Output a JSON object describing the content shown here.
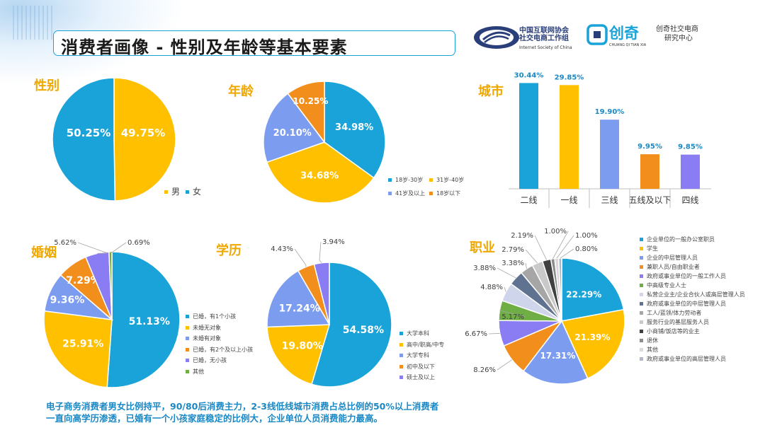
{
  "header": {
    "title": "消费者画像 - 性别及年龄等基本要素",
    "logo1": {
      "line1": "中国互联网协会",
      "line2": "社交电商工作组",
      "en": "Internet Society of China"
    },
    "logo2": {
      "brand": "创奇",
      "brand_en": "CHUANG QI TIAN XIA",
      "line1": "创奇社交电商",
      "line2": "研究中心"
    }
  },
  "colors": {
    "blue": "#1aa3d9",
    "gold": "#ffc000",
    "periwinkle": "#7c9cf0",
    "orange": "#f28e1c",
    "purple": "#8a7cf2",
    "green": "#6fae45",
    "grey1": "#a6a6a6",
    "grey2": "#c9c9c9",
    "dark": "#404040"
  },
  "footer": {
    "line1": "电子商务消费者男女比例持平，90/80后消费主力，2-3线低线城市消费占总比例的50%以上消费者",
    "line2": "一直向高学历渗透，已婚有一个小孩家庭稳定的比例大，企业单位人员消费能力最高。"
  },
  "chart_data": [
    {
      "id": "gender",
      "type": "pie",
      "title": "性别",
      "series": [
        {
          "values": [
            {
              "label": "男",
              "value": 49.75,
              "text": "49.75%",
              "color": "#ffc000"
            },
            {
              "label": "女",
              "value": 50.25,
              "text": "50.25%",
              "color": "#1aa3d9"
            }
          ]
        }
      ]
    },
    {
      "id": "age",
      "type": "pie",
      "title": "年龄",
      "series": [
        {
          "values": [
            {
              "label": "18岁-30岁",
              "value": 34.98,
              "text": "34.98%",
              "color": "#1aa3d9"
            },
            {
              "label": "31岁-40岁",
              "value": 34.68,
              "text": "34.68%",
              "color": "#ffc000"
            },
            {
              "label": "41岁及以上",
              "value": 20.1,
              "text": "20.10%",
              "color": "#7c9cf0"
            },
            {
              "label": "18岁以下",
              "value": 10.25,
              "text": "10.25%",
              "color": "#f28e1c"
            }
          ]
        }
      ]
    },
    {
      "id": "city",
      "type": "bar",
      "title": "城市",
      "categories": [
        "二线",
        "一线",
        "三线",
        "五线及以下",
        "四线"
      ],
      "values": [
        30.44,
        29.85,
        19.9,
        9.95,
        9.85
      ],
      "labels": [
        "30.44%",
        "29.85%",
        "19.90%",
        "9.95%",
        "9.85%"
      ],
      "colors": [
        "#1aa3d9",
        "#ffc000",
        "#7c9cf0",
        "#f28e1c",
        "#8a7cf2"
      ],
      "ylim": [
        0,
        35
      ]
    },
    {
      "id": "marriage",
      "type": "pie",
      "title": "婚姻",
      "series": [
        {
          "values": [
            {
              "label": "已婚，有1个小孩",
              "value": 51.13,
              "text": "51.13%",
              "color": "#1aa3d9"
            },
            {
              "label": "未婚无对象",
              "value": 25.91,
              "text": "25.91%",
              "color": "#ffc000"
            },
            {
              "label": "未婚有对象",
              "value": 9.36,
              "text": "9.36%",
              "color": "#7c9cf0"
            },
            {
              "label": "已婚，有2个及以上小孩",
              "value": 7.29,
              "text": "7.29%",
              "color": "#f28e1c"
            },
            {
              "label": "已婚，无小孩",
              "value": 5.62,
              "text": "5.62%",
              "color": "#8a7cf2"
            },
            {
              "label": "其他",
              "value": 0.69,
              "text": "0.69%",
              "color": "#6fae45"
            }
          ]
        }
      ]
    },
    {
      "id": "education",
      "type": "pie",
      "title": "学历",
      "series": [
        {
          "values": [
            {
              "label": "大学本科",
              "value": 54.58,
              "text": "54.58%",
              "color": "#1aa3d9"
            },
            {
              "label": "高中/职高/中专",
              "value": 19.8,
              "text": "19.80%",
              "color": "#ffc000"
            },
            {
              "label": "大学专科",
              "value": 17.24,
              "text": "17.24%",
              "color": "#7c9cf0"
            },
            {
              "label": "初中及以下",
              "value": 4.43,
              "text": "4.43%",
              "color": "#f28e1c"
            },
            {
              "label": "硕士及以上",
              "value": 3.94,
              "text": "3.94%",
              "color": "#8a7cf2"
            }
          ]
        }
      ]
    },
    {
      "id": "occupation",
      "type": "pie",
      "title": "职业",
      "series": [
        {
          "values": [
            {
              "label": "企业单位的一般办公室职员",
              "value": 22.29,
              "text": "22.29%",
              "color": "#1aa3d9"
            },
            {
              "label": "学生",
              "value": 21.39,
              "text": "21.39%",
              "color": "#ffc000"
            },
            {
              "label": "企业的中层管理人员",
              "value": 17.31,
              "text": "17.31%",
              "color": "#7c9cf0"
            },
            {
              "label": "兼职人员/自由职业者",
              "value": 8.26,
              "text": "8.26%",
              "color": "#f28e1c"
            },
            {
              "label": "政府或事业单位的一般工作人员",
              "value": 6.67,
              "text": "6.67%",
              "color": "#8a7cf2"
            },
            {
              "label": "中高级专业人士",
              "value": 5.17,
              "text": "5.17%",
              "color": "#6fae45"
            },
            {
              "label": "私营企业主/企业合伙人或高层管理人员",
              "value": 4.88,
              "text": "4.88%",
              "color": "#cfd5ea"
            },
            {
              "label": "政府或事业单位的中层管理人员",
              "value": 3.88,
              "text": "3.88%",
              "color": "#5f7391"
            },
            {
              "label": "工人/蓝领/体力劳动者",
              "value": 3.38,
              "text": "3.38%",
              "color": "#a6a6a6"
            },
            {
              "label": "服务行业的基层服务人员",
              "value": 2.79,
              "text": "2.79%",
              "color": "#c9c9c9"
            },
            {
              "label": "小商铺/饭店等的业主",
              "value": 2.19,
              "text": "2.19%",
              "color": "#404040"
            },
            {
              "label": "退休",
              "value": 1.0,
              "text": "1.00%",
              "color": "#8c8c8c"
            },
            {
              "label": "其他",
              "value": 1.0,
              "text": "1.00%",
              "color": "#d9d9d9"
            },
            {
              "label": "政府或事业单位的高层管理人员",
              "value": 0.8,
              "text": "0.80%",
              "color": "#b0b8c8"
            }
          ]
        }
      ]
    }
  ]
}
